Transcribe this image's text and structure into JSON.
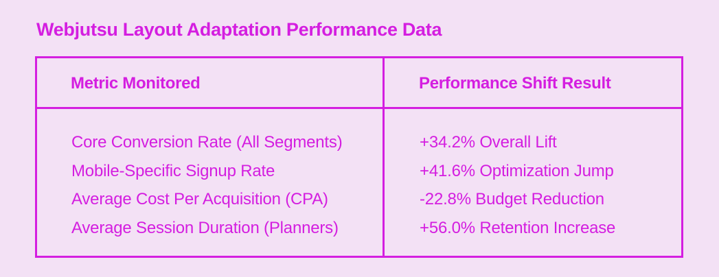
{
  "title": "Webjutsu Layout Adaptation Performance Data",
  "table": {
    "headers": [
      "Metric Monitored",
      "Performance Shift Result"
    ],
    "rows": [
      {
        "metric": "Core Conversion Rate (All Segments)",
        "result": "+34.2% Overall Lift"
      },
      {
        "metric": "Mobile-Specific Signup Rate",
        "result": "+41.6% Optimization Jump"
      },
      {
        "metric": "Average Cost Per Acquisition (CPA)",
        "result": "-22.8% Budget Reduction"
      },
      {
        "metric": "Average Session Duration (Planners)",
        "result": "+56.0% Retention Increase"
      }
    ]
  },
  "colors": {
    "accent": "#d41ee0",
    "background": "#f3e1f5"
  }
}
